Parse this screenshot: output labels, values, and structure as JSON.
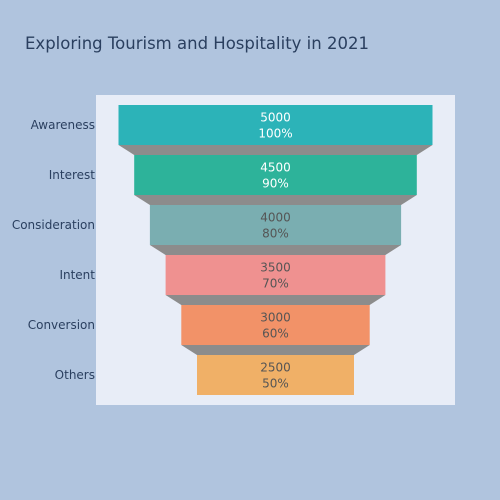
{
  "chart_data": {
    "type": "funnel",
    "title": "Exploring Tourism and Hospitality in 2021",
    "stages": [
      {
        "name": "Awareness",
        "value": 5000,
        "percent": "100%",
        "color": "#2cb3b8",
        "text_color": "#ffffff"
      },
      {
        "name": "Interest",
        "value": 4500,
        "percent": "90%",
        "color": "#2db39a",
        "text_color": "#ffffff"
      },
      {
        "name": "Consideration",
        "value": 4000,
        "percent": "80%",
        "color": "#7aaeb1",
        "text_color": "#555555"
      },
      {
        "name": "Intent",
        "value": 3500,
        "percent": "70%",
        "color": "#ef9190",
        "text_color": "#555555"
      },
      {
        "name": "Conversion",
        "value": 3000,
        "percent": "60%",
        "color": "#f29268",
        "text_color": "#555555"
      },
      {
        "name": "Others",
        "value": 2500,
        "percent": "50%",
        "color": "#f0b067",
        "text_color": "#555555"
      }
    ],
    "connector_color": "#8c8c8c",
    "plot_background": "#e8edf7",
    "page_background": "#b0c4de"
  }
}
